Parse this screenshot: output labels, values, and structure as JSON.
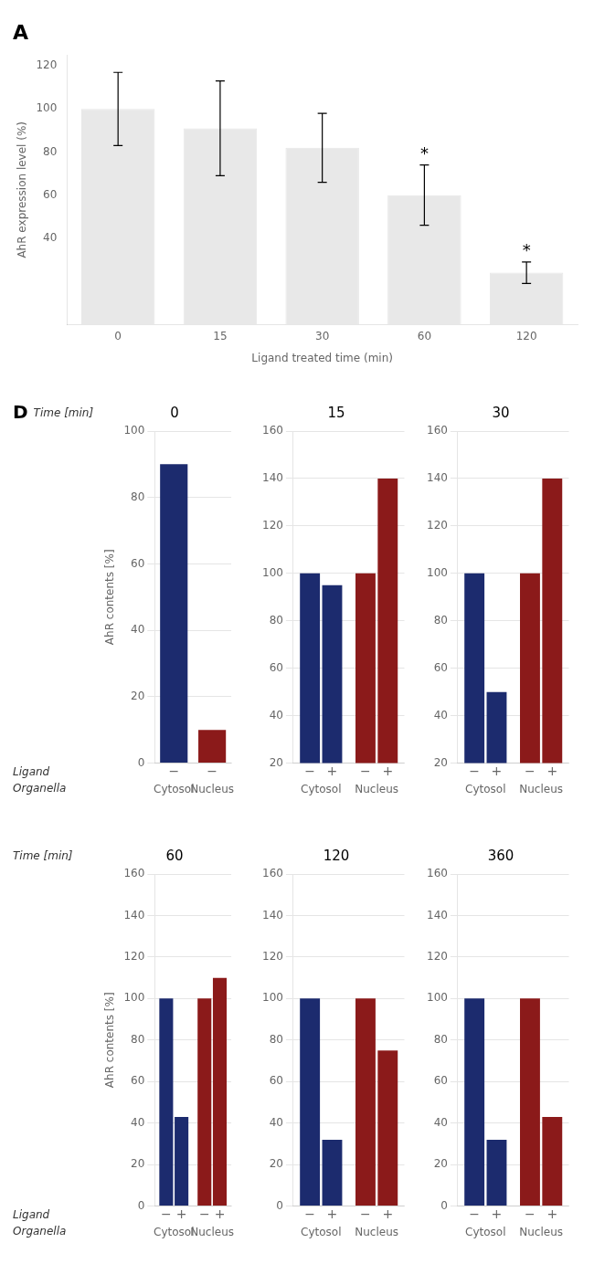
{
  "chart_data": [
    {
      "type": "bar",
      "title": "A",
      "categories": [
        "0",
        "15",
        "30",
        "60",
        "120"
      ],
      "values": [
        100,
        91,
        82,
        60,
        24
      ],
      "errors": [
        17,
        22,
        16,
        14,
        5
      ],
      "color": "#e8e8e8",
      "xlabel": "Ligand treated time (min)",
      "ylabel": "AhR expression level (%)",
      "ylim": [
        0,
        125
      ],
      "yticks": [
        40,
        60,
        80,
        100,
        120
      ],
      "grid": false,
      "annotations": [
        {
          "text": "*",
          "category": "60"
        },
        {
          "text": "*",
          "category": "120"
        }
      ]
    },
    {
      "type": "bar",
      "title": "0",
      "categories": [
        "Cytosol",
        "Nucleus"
      ],
      "series": [
        {
          "name": "−",
          "colors": [
            "#1c2b6e",
            "#8b1a1a"
          ],
          "values": [
            90,
            10
          ]
        }
      ],
      "ylabel": "AhR contents [%]",
      "ylim": [
        0,
        100
      ],
      "yticks": [
        0,
        20,
        40,
        60,
        80,
        100
      ],
      "grid": true,
      "annotations": [
        "D",
        "Time [min]",
        "Ligand",
        "Organella"
      ]
    },
    {
      "type": "bar",
      "title": "15",
      "categories": [
        "Cytosol",
        "Nucleus"
      ],
      "series": [
        {
          "name": "−",
          "colors": [
            "#1c2b6e",
            "#8b1a1a"
          ],
          "values": [
            100,
            100
          ]
        },
        {
          "name": "+",
          "colors": [
            "#1c2b6e",
            "#8b1a1a"
          ],
          "values": [
            95,
            140
          ]
        }
      ],
      "ylim": [
        20,
        160
      ],
      "yticks": [
        20,
        40,
        60,
        80,
        100,
        120,
        140,
        160
      ],
      "grid": true
    },
    {
      "type": "bar",
      "title": "30",
      "categories": [
        "Cytosol",
        "Nucleus"
      ],
      "series": [
        {
          "name": "−",
          "colors": [
            "#1c2b6e",
            "#8b1a1a"
          ],
          "values": [
            100,
            100
          ]
        },
        {
          "name": "+",
          "colors": [
            "#1c2b6e",
            "#8b1a1a"
          ],
          "values": [
            50,
            140
          ]
        }
      ],
      "ylim": [
        20,
        160
      ],
      "yticks": [
        20,
        40,
        60,
        80,
        100,
        120,
        140,
        160
      ],
      "grid": true
    },
    {
      "type": "bar",
      "title": "60",
      "categories": [
        "Cytosol",
        "Nucleus"
      ],
      "series": [
        {
          "name": "−",
          "colors": [
            "#1c2b6e",
            "#8b1a1a"
          ],
          "values": [
            100,
            100
          ]
        },
        {
          "name": "+",
          "colors": [
            "#1c2b6e",
            "#8b1a1a"
          ],
          "values": [
            43,
            110
          ]
        }
      ],
      "ylabel": "AhR contents [%]",
      "ylim": [
        0,
        160
      ],
      "yticks": [
        0,
        20,
        40,
        60,
        80,
        100,
        120,
        140,
        160
      ],
      "grid": true,
      "annotations": [
        "Time [min]",
        "Ligand",
        "Organella"
      ]
    },
    {
      "type": "bar",
      "title": "120",
      "categories": [
        "Cytosol",
        "Nucleus"
      ],
      "series": [
        {
          "name": "−",
          "colors": [
            "#1c2b6e",
            "#8b1a1a"
          ],
          "values": [
            100,
            100
          ]
        },
        {
          "name": "+",
          "colors": [
            "#1c2b6e",
            "#8b1a1a"
          ],
          "values": [
            32,
            75
          ]
        }
      ],
      "ylim": [
        0,
        160
      ],
      "yticks": [
        0,
        20,
        40,
        60,
        80,
        100,
        120,
        140,
        160
      ],
      "grid": true
    },
    {
      "type": "bar",
      "title": "360",
      "categories": [
        "Cytosol",
        "Nucleus"
      ],
      "series": [
        {
          "name": "−",
          "colors": [
            "#1c2b6e",
            "#8b1a1a"
          ],
          "values": [
            100,
            100
          ]
        },
        {
          "name": "+",
          "colors": [
            "#1c2b6e",
            "#8b1a1a"
          ],
          "values": [
            32,
            43
          ]
        }
      ],
      "ylim": [
        0,
        160
      ],
      "yticks": [
        0,
        20,
        40,
        60,
        80,
        100,
        120,
        140,
        160
      ],
      "grid": true
    }
  ]
}
